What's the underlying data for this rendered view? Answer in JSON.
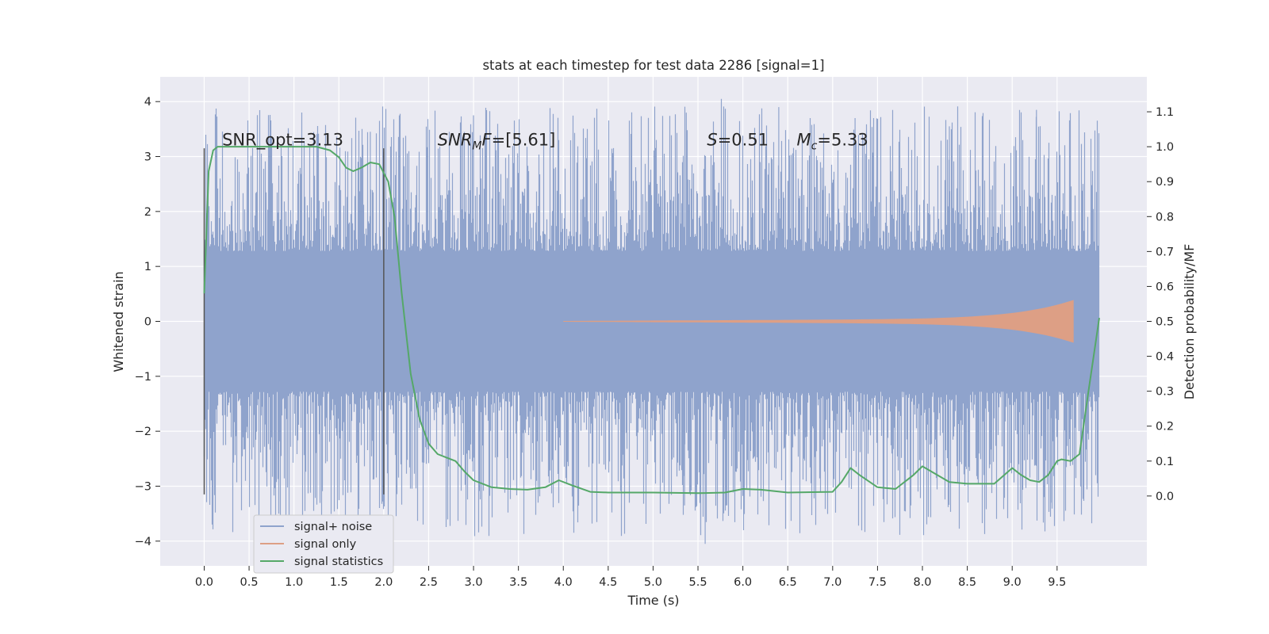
{
  "chart_data": {
    "type": "line",
    "title": "stats at each timestep for test data 2286 [signal=1]",
    "xlabel": "Time (s)",
    "ylabel_left": "Whitened strain",
    "ylabel_right": "Detection probability/MF",
    "xlim": [
      -0.49,
      10.5
    ],
    "ylim_left": [
      -4.45,
      4.45
    ],
    "ylim_right": [
      -0.2,
      1.2
    ],
    "x_ticks": [
      0.0,
      0.5,
      1.0,
      1.5,
      2.0,
      2.5,
      3.0,
      3.5,
      4.0,
      4.5,
      5.0,
      5.5,
      6.0,
      6.5,
      7.0,
      7.5,
      8.0,
      8.5,
      9.0,
      9.5
    ],
    "x_tick_labels": [
      "0.0",
      "0.5",
      "1.0",
      "1.5",
      "2.0",
      "2.5",
      "3.0",
      "3.5",
      "4.0",
      "4.5",
      "5.0",
      "5.5",
      "6.0",
      "6.5",
      "7.0",
      "7.5",
      "8.0",
      "8.5",
      "9.0",
      "9.5"
    ],
    "y_ticks_left": [
      -4,
      -3,
      -2,
      -1,
      0,
      1,
      2,
      3,
      4
    ],
    "y_tick_labels_left": [
      "−4",
      "−3",
      "−2",
      "−1",
      "0",
      "1",
      "2",
      "3",
      "4"
    ],
    "y_ticks_right": [
      0.0,
      0.1,
      0.2,
      0.3,
      0.4,
      0.5,
      0.6,
      0.7,
      0.8,
      0.9,
      1.0,
      1.1
    ],
    "y_tick_labels_right": [
      "0.0",
      "0.1",
      "0.2",
      "0.3",
      "0.4",
      "0.5",
      "0.6",
      "0.7",
      "0.8",
      "0.9",
      "1.0",
      "1.1"
    ],
    "grid": true,
    "legend_position": "lower-left",
    "window_markers": {
      "x": [
        0.0,
        2.0
      ],
      "ymin": -3.15,
      "ymax": 3.15,
      "color": "#555555"
    },
    "annotations": [
      {
        "x": 0.2,
        "y": 3.2,
        "text": "SNR_opt=3.13"
      },
      {
        "x": 2.6,
        "y": 3.2,
        "text": "SNR_MF=[5.61]"
      },
      {
        "x": 5.6,
        "y": 3.2,
        "text": "S=0.51"
      },
      {
        "x": 6.6,
        "y": 3.2,
        "text": "M_c=5.33"
      }
    ],
    "series": [
      {
        "name": "signal+ noise",
        "axis": "left",
        "color": "#8fa3cc",
        "style": "dense-noise",
        "x_range": [
          0.0,
          9.97
        ],
        "core_amplitude": 1.28,
        "peak_max": 4.05,
        "peak_min": -4.05
      },
      {
        "name": "signal only",
        "axis": "left",
        "color": "#dd9f85",
        "style": "chirp",
        "x_range": [
          4.0,
          9.68
        ],
        "start_amplitude": 0.0,
        "end_amplitude": 0.38
      },
      {
        "name": "signal statistics",
        "axis": "right",
        "color": "#55a868",
        "style": "line",
        "x": [
          0.0,
          0.05,
          0.1,
          0.15,
          0.3,
          0.5,
          0.75,
          1.0,
          1.25,
          1.4,
          1.5,
          1.58,
          1.66,
          1.75,
          1.85,
          1.95,
          2.05,
          2.12,
          2.2,
          2.3,
          2.4,
          2.5,
          2.6,
          2.7,
          2.8,
          2.9,
          3.0,
          3.2,
          3.4,
          3.6,
          3.8,
          3.95,
          4.1,
          4.3,
          4.5,
          5.0,
          5.5,
          5.8,
          6.0,
          6.2,
          6.5,
          7.0,
          7.1,
          7.2,
          7.3,
          7.5,
          7.7,
          7.9,
          8.0,
          8.1,
          8.3,
          8.5,
          8.8,
          9.0,
          9.1,
          9.2,
          9.3,
          9.4,
          9.5,
          9.55,
          9.65,
          9.75,
          9.85,
          9.97
        ],
        "y": [
          0.58,
          0.93,
          0.99,
          1.0,
          1.0,
          1.0,
          1.0,
          1.0,
          1.0,
          0.99,
          0.97,
          0.94,
          0.93,
          0.94,
          0.955,
          0.95,
          0.9,
          0.8,
          0.58,
          0.35,
          0.22,
          0.15,
          0.12,
          0.11,
          0.1,
          0.07,
          0.045,
          0.025,
          0.02,
          0.018,
          0.025,
          0.045,
          0.03,
          0.012,
          0.01,
          0.01,
          0.008,
          0.01,
          0.02,
          0.018,
          0.01,
          0.012,
          0.04,
          0.08,
          0.06,
          0.025,
          0.02,
          0.06,
          0.085,
          0.07,
          0.04,
          0.035,
          0.035,
          0.08,
          0.06,
          0.045,
          0.04,
          0.06,
          0.1,
          0.105,
          0.1,
          0.12,
          0.3,
          0.51
        ]
      }
    ]
  }
}
